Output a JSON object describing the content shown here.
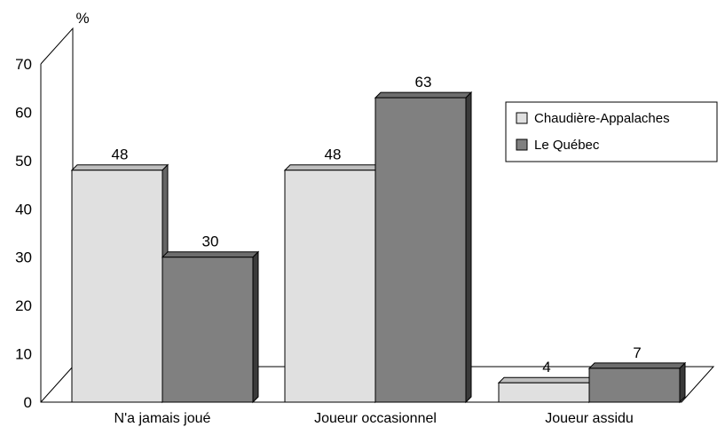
{
  "chart_data": {
    "type": "bar",
    "unit_label": "%",
    "categories": [
      "N'a jamais joué",
      "Joueur occasionnel",
      "Joueur assidu"
    ],
    "series": [
      {
        "name": "Chaudière-Appalaches",
        "values": [
          48,
          48,
          4
        ],
        "color": "#e0e0e0"
      },
      {
        "name": "Le Québec",
        "values": [
          30,
          63,
          7
        ],
        "color": "#808080"
      }
    ],
    "ylim": [
      0,
      70
    ],
    "yticks": [
      0,
      10,
      20,
      30,
      40,
      50,
      60,
      70
    ],
    "grid": false,
    "legend": "right"
  }
}
